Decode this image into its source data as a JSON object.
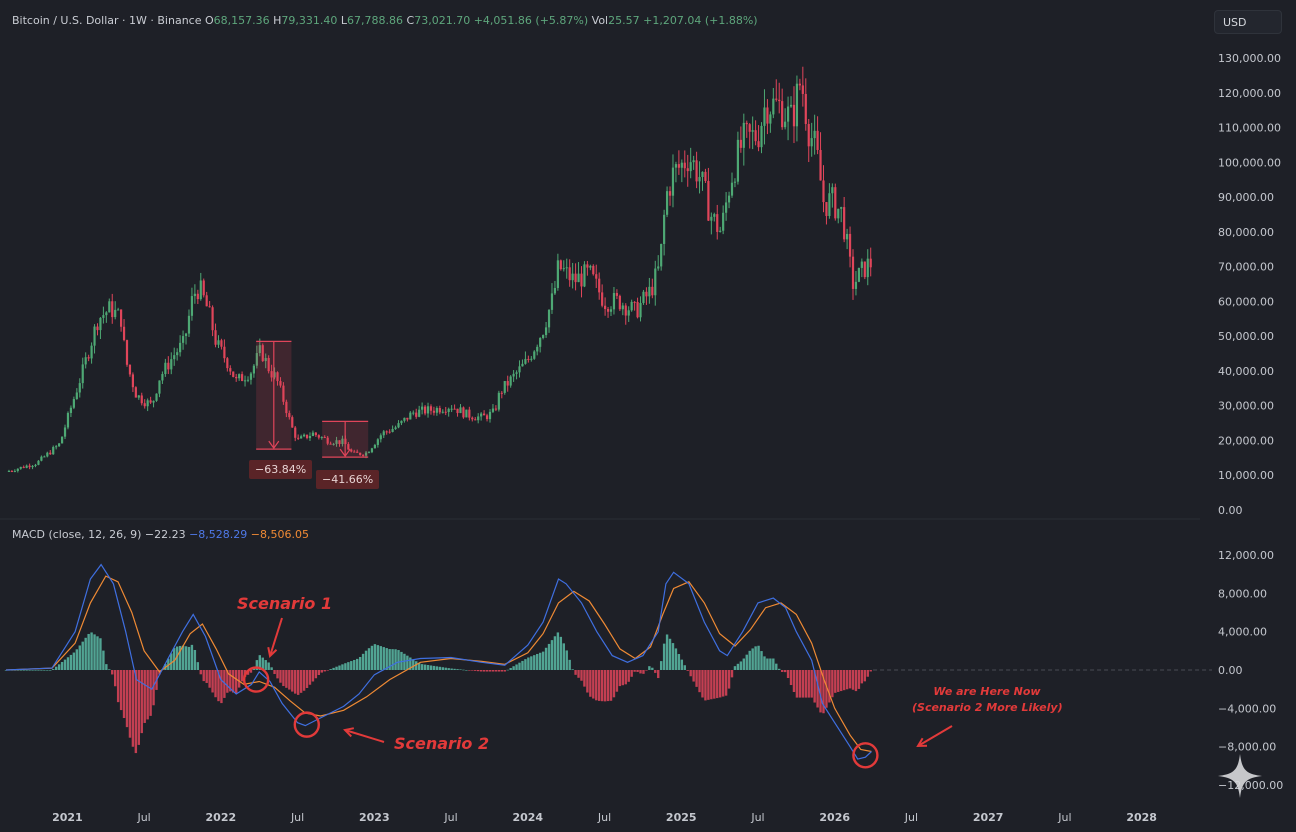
{
  "header": {
    "symbol": "Bitcoin / U.S. Dollar · 1W · Binance",
    "o_label": "O",
    "o_value": "68,157.36",
    "h_label": "H",
    "h_value": "79,331.40",
    "l_label": "L",
    "l_value": "67,788.86",
    "c_label": "C",
    "c_value": "73,021.70",
    "change": "+4,051.86 (+5.87%)",
    "vol_label": "Vol",
    "vol_value": "25.57",
    "vol_change": "+1,207.04 (+1.88%)"
  },
  "currency_button": "USD",
  "macd_header": {
    "label": "MACD (close, 12, 26, 9)",
    "hist": "−22.23",
    "macd": "−8,528.29",
    "signal": "−8,506.05"
  },
  "annotations": {
    "drop1": "−63.84%",
    "drop2": "−41.66%",
    "scenario1": "Scenario 1",
    "scenario2": "Scenario 2",
    "here_line1": "We are Here Now",
    "here_line2": "(Scenario 2 More Likely)"
  },
  "colors": {
    "background": "#1e2027",
    "up": "#4ea874",
    "down": "#e0455a",
    "macd_line": "#3f6fe0",
    "signal_line": "#ef8a34",
    "hist_up": "#56b3a0",
    "hist_down": "#e0455a",
    "annotation": "#e23a3a"
  },
  "chart_data": [
    {
      "type": "candlestick",
      "title": "Bitcoin / U.S. Dollar · 1W · Binance",
      "y_ticks": [
        "130,000.00",
        "120,000.00",
        "110,000.00",
        "100,000.00",
        "90,000.00",
        "80,000.00",
        "70,000.00",
        "60,000.00",
        "50,000.00",
        "40,000.00",
        "30,000.00",
        "20,000.00",
        "10,000.00",
        "0.00"
      ],
      "ylim": [
        0,
        130000
      ],
      "x_ticks": [
        "2021",
        "Jul",
        "2022",
        "Jul",
        "2023",
        "Jul",
        "2024",
        "Jul",
        "2025",
        "Jul",
        "2026",
        "Jul",
        "2027",
        "Jul",
        "2028"
      ],
      "x_tick_dates": [
        2021.0,
        2021.5,
        2022.0,
        2022.5,
        2023.0,
        2023.5,
        2024.0,
        2024.5,
        2025.0,
        2025.5,
        2026.0,
        2026.5,
        2027.0,
        2027.5,
        2028.0
      ],
      "xlim": [
        2020.6,
        2028.25
      ],
      "close_path": [
        [
          2020.6,
          11000
        ],
        [
          2020.8,
          13500
        ],
        [
          2020.95,
          19000
        ],
        [
          2021.02,
          29000
        ],
        [
          2021.1,
          40000
        ],
        [
          2021.2,
          55000
        ],
        [
          2021.28,
          58000
        ],
        [
          2021.35,
          55000
        ],
        [
          2021.38,
          43000
        ],
        [
          2021.45,
          33000
        ],
        [
          2021.55,
          30000
        ],
        [
          2021.6,
          38000
        ],
        [
          2021.7,
          45000
        ],
        [
          2021.76,
          48000
        ],
        [
          2021.82,
          62000
        ],
        [
          2021.86,
          64000
        ],
        [
          2021.92,
          57000
        ],
        [
          2021.97,
          48000
        ],
        [
          2022.05,
          42000
        ],
        [
          2022.1,
          37000
        ],
        [
          2022.2,
          40000
        ],
        [
          2022.26,
          46000
        ],
        [
          2022.32,
          40000
        ],
        [
          2022.36,
          38000
        ],
        [
          2022.42,
          30000
        ],
        [
          2022.46,
          24000
        ],
        [
          2022.5,
          20000
        ],
        [
          2022.6,
          22000
        ],
        [
          2022.7,
          20000
        ],
        [
          2022.8,
          19500
        ],
        [
          2022.86,
          16000
        ],
        [
          2022.95,
          16500
        ],
        [
          2023.05,
          22000
        ],
        [
          2023.15,
          24000
        ],
        [
          2023.25,
          28000
        ],
        [
          2023.4,
          29000
        ],
        [
          2023.5,
          30000
        ],
        [
          2023.6,
          27500
        ],
        [
          2023.7,
          26500
        ],
        [
          2023.78,
          28000
        ],
        [
          2023.82,
          34000
        ],
        [
          2023.9,
          38000
        ],
        [
          2024.0,
          43000
        ],
        [
          2024.1,
          52000
        ],
        [
          2024.17,
          62000
        ],
        [
          2024.2,
          70000
        ],
        [
          2024.3,
          66000
        ],
        [
          2024.4,
          68000
        ],
        [
          2024.5,
          60000
        ],
        [
          2024.6,
          60000
        ],
        [
          2024.7,
          57000
        ],
        [
          2024.8,
          63000
        ],
        [
          2024.86,
          70000
        ],
        [
          2024.9,
          90000
        ],
        [
          2024.95,
          97000
        ],
        [
          2025.0,
          99000
        ],
        [
          2025.05,
          102000
        ],
        [
          2025.12,
          96000
        ],
        [
          2025.2,
          84000
        ],
        [
          2025.26,
          80000
        ],
        [
          2025.32,
          95000
        ],
        [
          2025.4,
          106000
        ],
        [
          2025.5,
          108000
        ],
        [
          2025.55,
          117000
        ],
        [
          2025.65,
          116000
        ],
        [
          2025.72,
          112000
        ],
        [
          2025.78,
          124000
        ],
        [
          2025.83,
          110000
        ],
        [
          2025.88,
          103000
        ],
        [
          2025.93,
          88000
        ],
        [
          2025.98,
          89000
        ],
        [
          2026.05,
          85000
        ],
        [
          2026.1,
          70000
        ],
        [
          2026.12,
          65000
        ],
        [
          2026.17,
          68000
        ],
        [
          2026.2,
          70000
        ],
        [
          2026.24,
          71000
        ]
      ]
    },
    {
      "type": "line+histogram",
      "title": "MACD (close, 12, 26, 9)",
      "y_ticks": [
        "12,000.00",
        "8,000.00",
        "4,000.00",
        "0.00",
        "−4,000.00",
        "−8,000.00",
        "−12,000.00"
      ],
      "ylim": [
        -12000,
        12000
      ],
      "series": [
        {
          "name": "MACD",
          "points": [
            [
              2020.6,
              0
            ],
            [
              2020.9,
              200
            ],
            [
              2021.05,
              4000
            ],
            [
              2021.15,
              9500
            ],
            [
              2021.22,
              11000
            ],
            [
              2021.3,
              9000
            ],
            [
              2021.38,
              4000
            ],
            [
              2021.45,
              -1000
            ],
            [
              2021.55,
              -2000
            ],
            [
              2021.65,
              1000
            ],
            [
              2021.75,
              4000
            ],
            [
              2021.82,
              5800
            ],
            [
              2021.9,
              3500
            ],
            [
              2022.0,
              -1000
            ],
            [
              2022.1,
              -2500
            ],
            [
              2022.2,
              -1500
            ],
            [
              2022.25,
              -200
            ],
            [
              2022.32,
              -1200
            ],
            [
              2022.4,
              -3500
            ],
            [
              2022.5,
              -5500
            ],
            [
              2022.55,
              -5800
            ],
            [
              2022.65,
              -5000
            ],
            [
              2022.8,
              -3800
            ],
            [
              2022.9,
              -2500
            ],
            [
              2023.0,
              -500
            ],
            [
              2023.15,
              800
            ],
            [
              2023.3,
              1200
            ],
            [
              2023.5,
              1300
            ],
            [
              2023.7,
              800
            ],
            [
              2023.85,
              500
            ],
            [
              2024.0,
              2600
            ],
            [
              2024.1,
              5000
            ],
            [
              2024.2,
              9500
            ],
            [
              2024.25,
              9000
            ],
            [
              2024.35,
              7000
            ],
            [
              2024.45,
              4000
            ],
            [
              2024.55,
              1500
            ],
            [
              2024.65,
              800
            ],
            [
              2024.75,
              1500
            ],
            [
              2024.85,
              4000
            ],
            [
              2024.9,
              9000
            ],
            [
              2024.95,
              10200
            ],
            [
              2025.05,
              9000
            ],
            [
              2025.15,
              5000
            ],
            [
              2025.25,
              2000
            ],
            [
              2025.3,
              1500
            ],
            [
              2025.4,
              4000
            ],
            [
              2025.5,
              7000
            ],
            [
              2025.6,
              7500
            ],
            [
              2025.68,
              6500
            ],
            [
              2025.75,
              4000
            ],
            [
              2025.85,
              1000
            ],
            [
              2025.92,
              -3500
            ],
            [
              2026.0,
              -5500
            ],
            [
              2026.1,
              -8000
            ],
            [
              2026.15,
              -9300
            ],
            [
              2026.2,
              -9100
            ],
            [
              2026.24,
              -8500
            ]
          ]
        },
        {
          "name": "Signal",
          "points": [
            [
              2020.6,
              0
            ],
            [
              2020.9,
              200
            ],
            [
              2021.05,
              2800
            ],
            [
              2021.15,
              7000
            ],
            [
              2021.25,
              9800
            ],
            [
              2021.33,
              9200
            ],
            [
              2021.42,
              6000
            ],
            [
              2021.5,
              2000
            ],
            [
              2021.6,
              -200
            ],
            [
              2021.7,
              1000
            ],
            [
              2021.8,
              3800
            ],
            [
              2021.88,
              4800
            ],
            [
              2021.97,
              2200
            ],
            [
              2022.05,
              -400
            ],
            [
              2022.15,
              -1500
            ],
            [
              2022.25,
              -1200
            ],
            [
              2022.35,
              -1800
            ],
            [
              2022.45,
              -3200
            ],
            [
              2022.55,
              -4500
            ],
            [
              2022.65,
              -4800
            ],
            [
              2022.8,
              -4200
            ],
            [
              2022.95,
              -2800
            ],
            [
              2023.1,
              -1000
            ],
            [
              2023.3,
              800
            ],
            [
              2023.5,
              1200
            ],
            [
              2023.7,
              900
            ],
            [
              2023.85,
              600
            ],
            [
              2024.0,
              1800
            ],
            [
              2024.1,
              3800
            ],
            [
              2024.2,
              7000
            ],
            [
              2024.3,
              8200
            ],
            [
              2024.4,
              7200
            ],
            [
              2024.5,
              4800
            ],
            [
              2024.6,
              2200
            ],
            [
              2024.7,
              1200
            ],
            [
              2024.8,
              2400
            ],
            [
              2024.88,
              5800
            ],
            [
              2024.95,
              8500
            ],
            [
              2025.05,
              9200
            ],
            [
              2025.15,
              7000
            ],
            [
              2025.25,
              3800
            ],
            [
              2025.35,
              2500
            ],
            [
              2025.45,
              4200
            ],
            [
              2025.55,
              6500
            ],
            [
              2025.65,
              7000
            ],
            [
              2025.75,
              5800
            ],
            [
              2025.85,
              2800
            ],
            [
              2025.93,
              -1000
            ],
            [
              2026.0,
              -4000
            ],
            [
              2026.1,
              -6800
            ],
            [
              2026.17,
              -8300
            ],
            [
              2026.24,
              -8500
            ]
          ]
        }
      ]
    }
  ]
}
